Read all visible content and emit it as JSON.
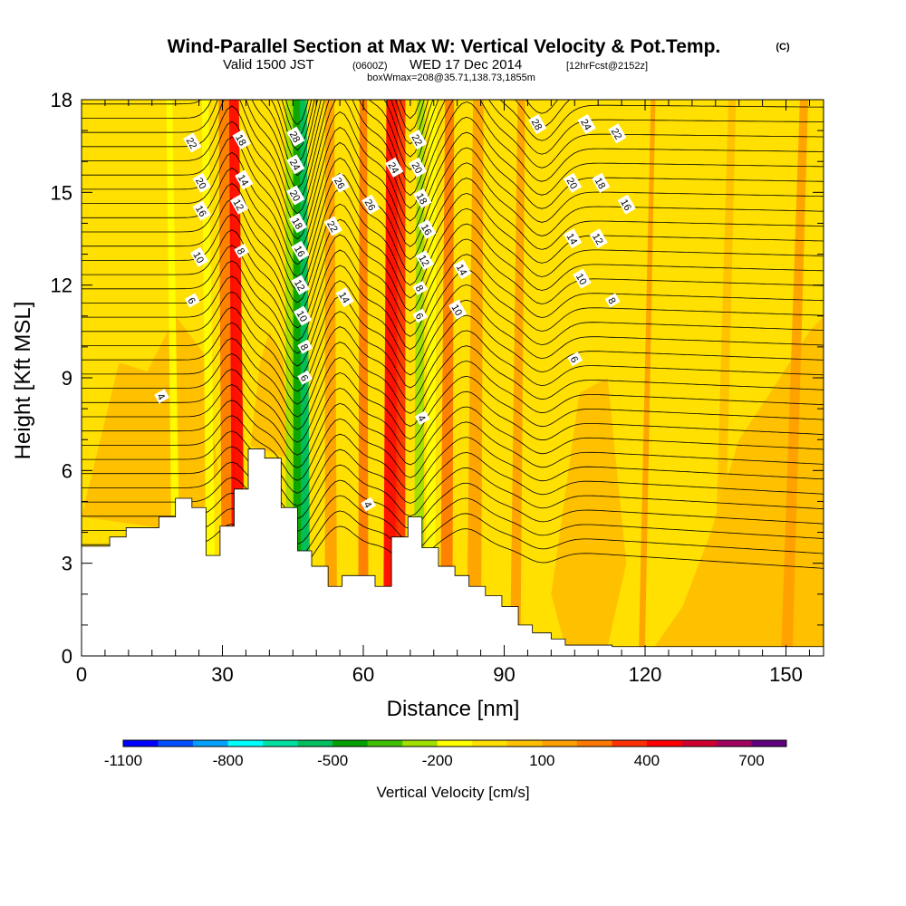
{
  "title": {
    "main": "Wind-Parallel Section at Max W: Vertical Velocity & Pot.Temp.",
    "copyright": "(C)",
    "sub_valid": "Valid 1500 JST",
    "sub_z": "(0600Z)",
    "sub_date": "WED 17 Dec 2014",
    "sub_fcst": "[12hrFcst@2152z]",
    "box": "boxWmax=208@35.71,138.73,1855m"
  },
  "chart_data": {
    "type": "heatmap",
    "xlabel": "Distance [nm]",
    "ylabel": "Height [Kft MSL]",
    "xlim": [
      0,
      158
    ],
    "ylim": [
      0,
      18
    ],
    "x_ticks": [
      "0",
      "30",
      "60",
      "90",
      "120",
      "150"
    ],
    "y_ticks": [
      "0",
      "3",
      "6",
      "9",
      "12",
      "15",
      "18"
    ],
    "colorbar": {
      "title": "Vertical Velocity [cm/s]",
      "tick_labels": [
        "-1100",
        "-800",
        "-500",
        "-200",
        "100",
        "400",
        "700"
      ],
      "colors": [
        "#0000ff",
        "#0050ff",
        "#00a0ff",
        "#00ffff",
        "#00e0a0",
        "#00c060",
        "#00a000",
        "#40c000",
        "#a0e000",
        "#ffff00",
        "#ffe000",
        "#ffc000",
        "#ffa000",
        "#ff7800",
        "#ff3000",
        "#ff0000",
        "#d00030",
        "#a00060",
        "#600080"
      ]
    },
    "terrain_profile": {
      "x": [
        0,
        6,
        6,
        9.5,
        9.5,
        13,
        13,
        16.5,
        16.5,
        20,
        20,
        23.5,
        23.5,
        26.5,
        26.5,
        29.5,
        29.5,
        32.5,
        32.5,
        35.5,
        35.5,
        39,
        39,
        42.5,
        42.5,
        46,
        46,
        49,
        49,
        52.5,
        52.5,
        55.5,
        55.5,
        59,
        59,
        62.5,
        62.5,
        66,
        66,
        69.5,
        69.5,
        72.5,
        72.5,
        76,
        76,
        79.5,
        79.5,
        82.5,
        82.5,
        86,
        86,
        89.5,
        89.5,
        93,
        93,
        96,
        96,
        100,
        100,
        103,
        103,
        113,
        113,
        158
      ],
      "y": [
        3.55,
        3.55,
        3.85,
        3.85,
        4.15,
        4.15,
        4.15,
        4.15,
        4.5,
        4.5,
        5.1,
        5.1,
        4.8,
        4.8,
        3.25,
        3.25,
        4.2,
        4.2,
        5.4,
        5.4,
        6.7,
        6.7,
        6.4,
        6.4,
        4.8,
        4.8,
        3.4,
        3.4,
        2.9,
        2.9,
        2.25,
        2.25,
        2.6,
        2.6,
        2.6,
        2.6,
        2.25,
        2.25,
        3.85,
        3.85,
        4.5,
        4.5,
        3.5,
        3.5,
        2.9,
        2.9,
        2.6,
        2.6,
        2.25,
        2.25,
        1.95,
        1.95,
        1.6,
        1.6,
        1.0,
        1.0,
        0.75,
        0.75,
        0.55,
        0.55,
        0.35,
        0.35,
        0.3,
        0.3
      ]
    },
    "vertical_velocity_bands": [
      {
        "x_center": 19.5,
        "width": 1.6,
        "w": -150
      },
      {
        "x_center": 27,
        "width": 1.8,
        "w": -170
      },
      {
        "x_center": 31,
        "width": 3.0,
        "w": 250
      },
      {
        "x_center": 33,
        "width": 2.6,
        "w": 420
      },
      {
        "x_center": 45,
        "width": 3.2,
        "w": -250
      },
      {
        "x_center": 46.5,
        "width": 3.0,
        "w": -450
      },
      {
        "x_center": 47.5,
        "width": 1.8,
        "w": -550
      },
      {
        "x_center": 53,
        "width": 2.4,
        "w": 180
      },
      {
        "x_center": 60,
        "width": 2.0,
        "w": 220
      },
      {
        "x_center": 66,
        "width": 3.0,
        "w": 450
      },
      {
        "x_center": 68,
        "width": 2.0,
        "w": 320
      },
      {
        "x_center": 72,
        "width": 2.0,
        "w": -300
      },
      {
        "x_center": 74.5,
        "width": 2.0,
        "w": -150
      },
      {
        "x_center": 78,
        "width": 2.4,
        "w": 250
      },
      {
        "x_center": 84,
        "width": 2.8,
        "w": 120
      },
      {
        "x_center": 93,
        "width": 2.0,
        "w": 100
      },
      {
        "x_center": 120.5,
        "width": 1.2,
        "w": 100
      },
      {
        "x_center": 137,
        "width": 2.0,
        "w": 90
      },
      {
        "x_center": 152,
        "width": 2.2,
        "w": 100
      }
    ],
    "theta_contours": {
      "levels": [
        4,
        6,
        8,
        10,
        12,
        14,
        16,
        18,
        20,
        22,
        24,
        26,
        28
      ],
      "labels": [
        {
          "text": "4",
          "x": 17,
          "y": 8.4
        },
        {
          "text": "6",
          "x": 23.5,
          "y": 11.5
        },
        {
          "text": "10",
          "x": 25,
          "y": 12.9
        },
        {
          "text": "16",
          "x": 25.5,
          "y": 14.4
        },
        {
          "text": "20",
          "x": 25.5,
          "y": 15.3
        },
        {
          "text": "22",
          "x": 23.5,
          "y": 16.6
        },
        {
          "text": "18",
          "x": 34,
          "y": 16.7
        },
        {
          "text": "14",
          "x": 34.5,
          "y": 15.4
        },
        {
          "text": "12",
          "x": 33.5,
          "y": 14.6
        },
        {
          "text": "8",
          "x": 34,
          "y": 13.1
        },
        {
          "text": "28",
          "x": 45.5,
          "y": 16.8
        },
        {
          "text": "24",
          "x": 45.5,
          "y": 15.9
        },
        {
          "text": "20",
          "x": 45.5,
          "y": 14.9
        },
        {
          "text": "18",
          "x": 46,
          "y": 14.0
        },
        {
          "text": "16",
          "x": 46.5,
          "y": 13.1
        },
        {
          "text": "12",
          "x": 46.5,
          "y": 12.0
        },
        {
          "text": "10",
          "x": 47,
          "y": 11.0
        },
        {
          "text": "8",
          "x": 47.5,
          "y": 10.0
        },
        {
          "text": "6",
          "x": 47.5,
          "y": 9.0
        },
        {
          "text": "26",
          "x": 55,
          "y": 15.3
        },
        {
          "text": "22",
          "x": 53.5,
          "y": 13.9
        },
        {
          "text": "14",
          "x": 56,
          "y": 11.6
        },
        {
          "text": "26",
          "x": 61.5,
          "y": 14.6
        },
        {
          "text": "22",
          "x": 71.5,
          "y": 16.7
        },
        {
          "text": "24",
          "x": 66.5,
          "y": 15.8
        },
        {
          "text": "20",
          "x": 71.5,
          "y": 15.8
        },
        {
          "text": "18",
          "x": 72.5,
          "y": 14.8
        },
        {
          "text": "16",
          "x": 73.5,
          "y": 13.8
        },
        {
          "text": "12",
          "x": 73,
          "y": 12.8
        },
        {
          "text": "8",
          "x": 72,
          "y": 11.9
        },
        {
          "text": "6",
          "x": 72,
          "y": 11.0
        },
        {
          "text": "14",
          "x": 81,
          "y": 12.5
        },
        {
          "text": "10",
          "x": 80,
          "y": 11.2
        },
        {
          "text": "4",
          "x": 72.5,
          "y": 7.7
        },
        {
          "text": "4",
          "x": 61,
          "y": 4.9
        },
        {
          "text": "28",
          "x": 97,
          "y": 17.2
        },
        {
          "text": "24",
          "x": 107.5,
          "y": 17.2
        },
        {
          "text": "22",
          "x": 114,
          "y": 16.9
        },
        {
          "text": "20",
          "x": 104.5,
          "y": 15.3
        },
        {
          "text": "18",
          "x": 110.5,
          "y": 15.3
        },
        {
          "text": "16",
          "x": 116,
          "y": 14.6
        },
        {
          "text": "14",
          "x": 104.5,
          "y": 13.5
        },
        {
          "text": "12",
          "x": 110,
          "y": 13.5
        },
        {
          "text": "10",
          "x": 106.5,
          "y": 12.2
        },
        {
          "text": "8",
          "x": 113,
          "y": 11.5
        },
        {
          "text": "6",
          "x": 105,
          "y": 9.6
        }
      ]
    },
    "grid": false
  },
  "colors": {
    "background_field": "#ffe000",
    "terrain": "#ffffff",
    "contour_line": "#000000"
  }
}
